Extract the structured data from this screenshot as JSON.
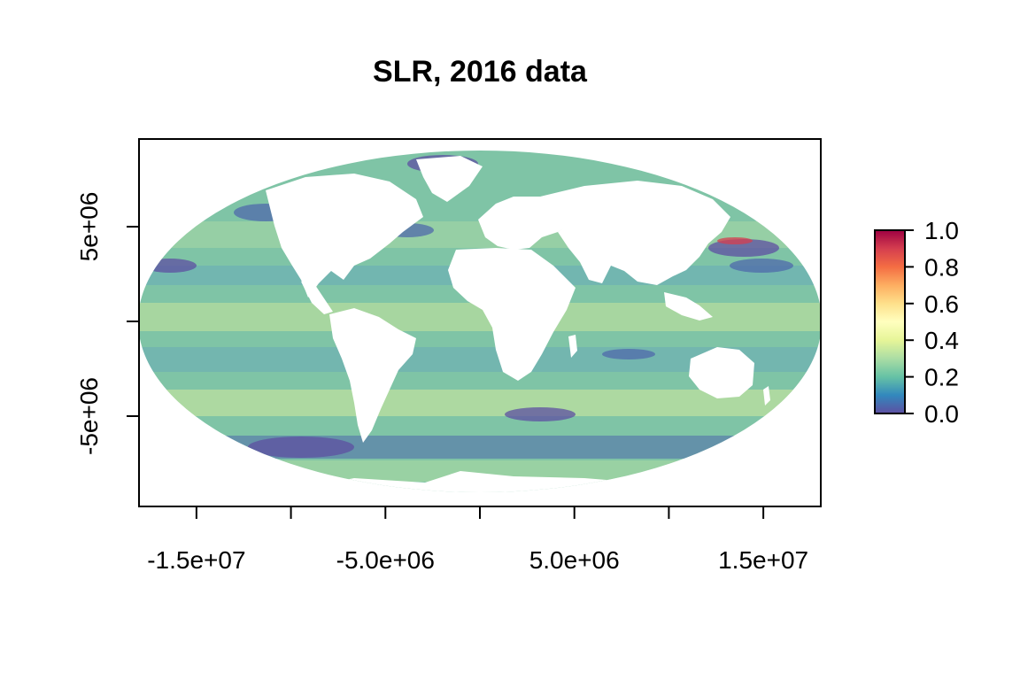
{
  "chart_data": {
    "type": "heatmap",
    "title": "SLR, 2016 data",
    "projection": "mollweide",
    "x_range": [
      -18040095,
      18040095
    ],
    "y_range": [
      -9020047,
      9020047
    ],
    "x_ticks": [
      -15000000,
      -10000000,
      -5000000,
      0,
      5000000,
      10000000,
      15000000
    ],
    "x_tick_labels": [
      {
        "value": -15000000,
        "label": "-1.5e+07"
      },
      {
        "value": -5000000,
        "label": "-5.0e+06"
      },
      {
        "value": 5000000,
        "label": "5.0e+06"
      },
      {
        "value": 15000000,
        "label": "1.5e+07"
      }
    ],
    "y_ticks": [
      -5000000,
      0,
      5000000
    ],
    "y_tick_labels": [
      {
        "value": 5000000,
        "label": "5e+06"
      },
      {
        "value": -5000000,
        "label": "-5e+06"
      }
    ],
    "colorbar": {
      "range": [
        0.0,
        1.0
      ],
      "tick_labels": [
        "0.0",
        "0.2",
        "0.4",
        "0.6",
        "0.8",
        "1.0"
      ],
      "palette": [
        "#5e4fa2",
        "#3288bd",
        "#66c2a5",
        "#abdda4",
        "#e6f598",
        "#ffffbf",
        "#fee08b",
        "#fdae61",
        "#f46d43",
        "#d53e4f",
        "#9e0142"
      ]
    },
    "colors": {
      "land": "#ffffff",
      "ocean_base": "#7fc4a6"
    }
  }
}
